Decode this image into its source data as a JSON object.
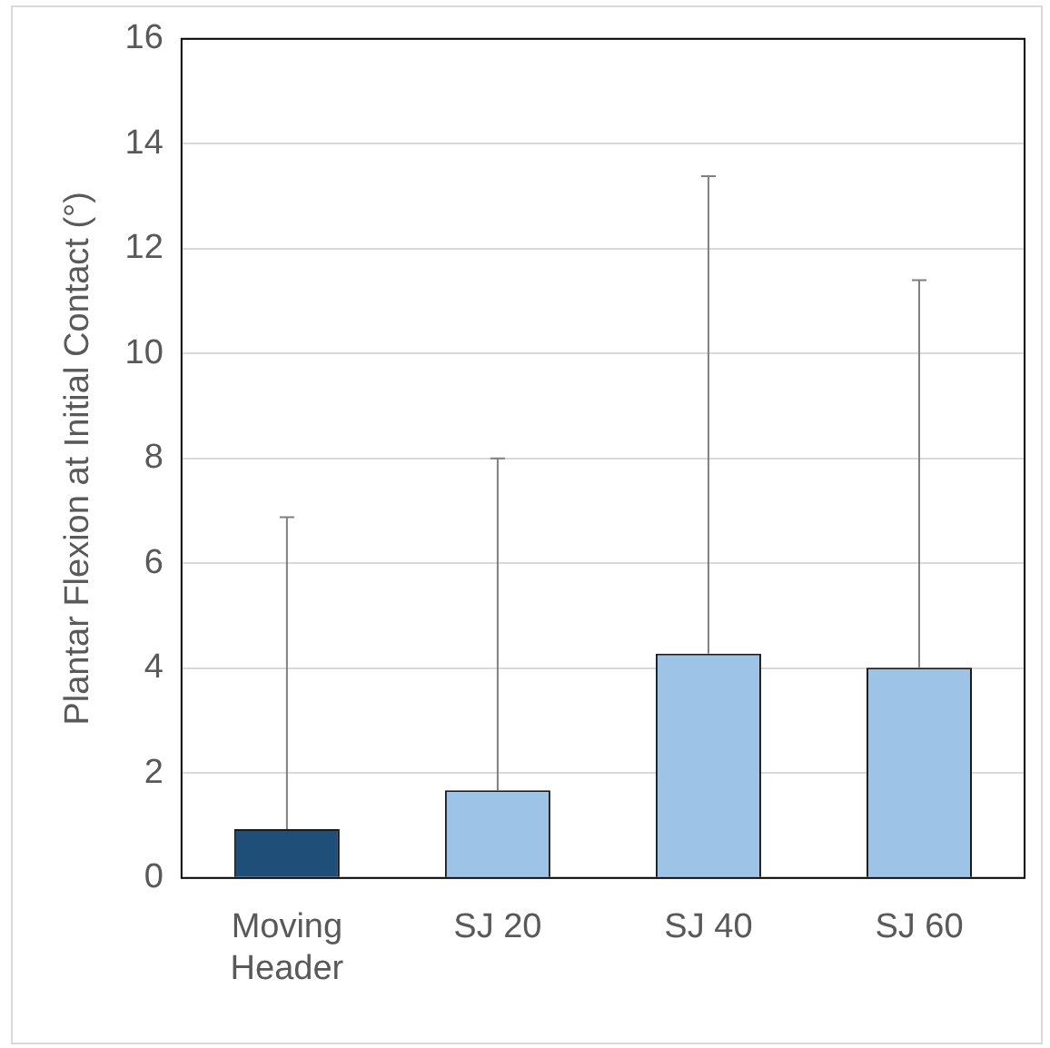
{
  "chart_data": {
    "type": "bar",
    "ylabel": "Plantar Flexion at Initial Contact (°)",
    "categories": [
      "Moving Header",
      "SJ 20",
      "SJ 40",
      "SJ 60"
    ],
    "values": [
      0.93,
      1.67,
      4.28,
      4.01
    ],
    "colors": [
      "#1f4e79",
      "#9dc3e6",
      "#9dc3e6",
      "#9dc3e6"
    ],
    "errors": [
      [
        0.93,
        6.88
      ],
      [
        1.67,
        8.0
      ],
      [
        4.28,
        13.38
      ],
      [
        4.01,
        11.4
      ]
    ],
    "ylim": [
      0,
      16
    ],
    "yticks": [
      0,
      2,
      4,
      6,
      8,
      10,
      12,
      14,
      16
    ],
    "grid": "y",
    "legend": false
  }
}
